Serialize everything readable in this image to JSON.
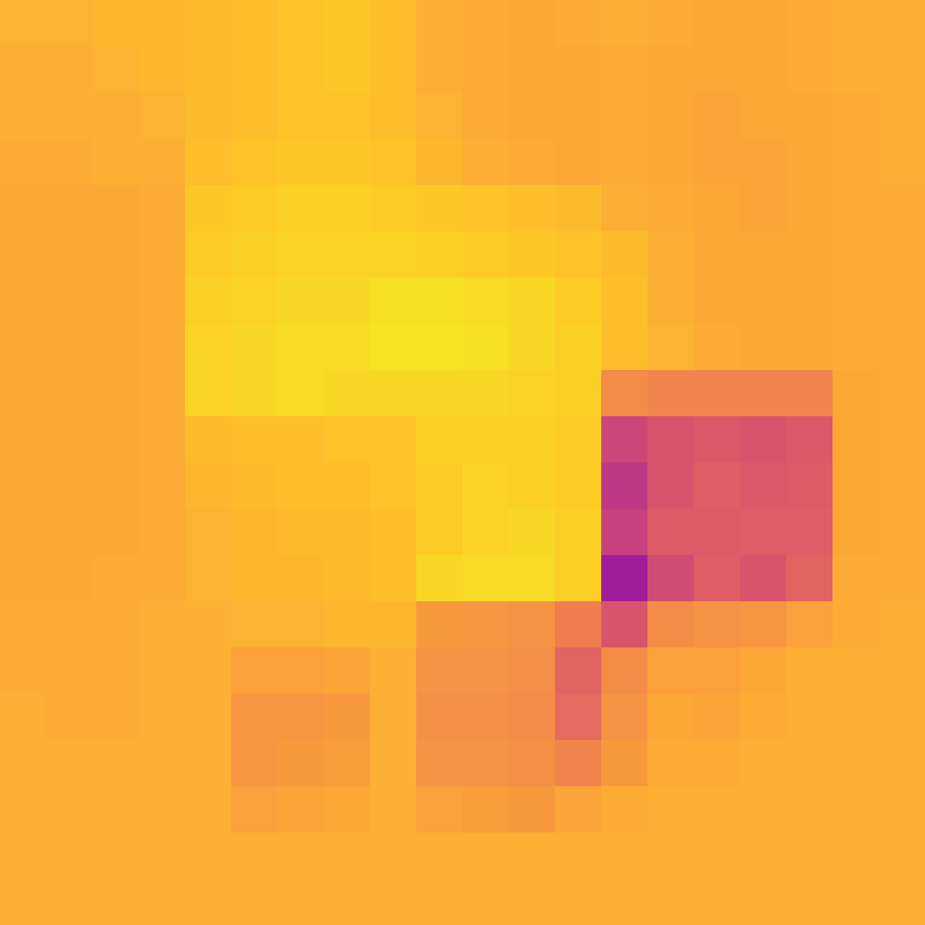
{
  "chart_data": {
    "type": "heatmap",
    "color": "plasma",
    "tick_labels": false,
    "grid": false,
    "zlim": [
      0,
      1
    ],
    "cells": [
      [
        0.83,
        0.83,
        0.84,
        0.84,
        0.85,
        0.86,
        0.87,
        0.88,
        0.86,
        0.82,
        0.81,
        0.8,
        0.81,
        0.82,
        0.81,
        0.8,
        0.8,
        0.81,
        0.82,
        0.82
      ],
      [
        0.82,
        0.82,
        0.83,
        0.84,
        0.85,
        0.86,
        0.87,
        0.88,
        0.86,
        0.82,
        0.81,
        0.8,
        0.8,
        0.81,
        0.8,
        0.8,
        0.8,
        0.81,
        0.82,
        0.82
      ],
      [
        0.82,
        0.82,
        0.82,
        0.83,
        0.85,
        0.86,
        0.87,
        0.87,
        0.86,
        0.83,
        0.81,
        0.8,
        0.8,
        0.81,
        0.8,
        0.79,
        0.8,
        0.8,
        0.81,
        0.82
      ],
      [
        0.81,
        0.81,
        0.82,
        0.82,
        0.86,
        0.87,
        0.88,
        0.88,
        0.87,
        0.84,
        0.82,
        0.81,
        0.8,
        0.81,
        0.8,
        0.79,
        0.79,
        0.8,
        0.81,
        0.82
      ],
      [
        0.8,
        0.8,
        0.8,
        0.81,
        0.88,
        0.89,
        0.9,
        0.9,
        0.89,
        0.88,
        0.87,
        0.86,
        0.85,
        0.82,
        0.81,
        0.8,
        0.79,
        0.8,
        0.81,
        0.81
      ],
      [
        0.8,
        0.8,
        0.8,
        0.81,
        0.89,
        0.9,
        0.91,
        0.91,
        0.91,
        0.9,
        0.89,
        0.88,
        0.87,
        0.85,
        0.82,
        0.8,
        0.8,
        0.8,
        0.81,
        0.81
      ],
      [
        0.8,
        0.8,
        0.8,
        0.81,
        0.9,
        0.91,
        0.92,
        0.92,
        0.94,
        0.94,
        0.93,
        0.92,
        0.89,
        0.86,
        0.82,
        0.8,
        0.8,
        0.8,
        0.81,
        0.81
      ],
      [
        0.8,
        0.8,
        0.8,
        0.81,
        0.91,
        0.92,
        0.93,
        0.93,
        0.95,
        0.95,
        0.94,
        0.92,
        0.9,
        0.86,
        0.83,
        0.81,
        0.8,
        0.8,
        0.81,
        0.81
      ],
      [
        0.8,
        0.8,
        0.8,
        0.81,
        0.91,
        0.92,
        0.93,
        0.92,
        0.92,
        0.92,
        0.92,
        0.91,
        0.9,
        0.72,
        0.7,
        0.7,
        0.7,
        0.7,
        0.8,
        0.81
      ],
      [
        0.8,
        0.8,
        0.8,
        0.81,
        0.85,
        0.86,
        0.86,
        0.87,
        0.87,
        0.9,
        0.9,
        0.9,
        0.89,
        0.5,
        0.55,
        0.56,
        0.55,
        0.56,
        0.8,
        0.81
      ],
      [
        0.8,
        0.8,
        0.8,
        0.81,
        0.84,
        0.85,
        0.86,
        0.86,
        0.87,
        0.89,
        0.91,
        0.9,
        0.89,
        0.45,
        0.55,
        0.58,
        0.56,
        0.57,
        0.8,
        0.81
      ],
      [
        0.8,
        0.8,
        0.8,
        0.81,
        0.83,
        0.84,
        0.85,
        0.85,
        0.86,
        0.89,
        0.91,
        0.92,
        0.9,
        0.48,
        0.57,
        0.57,
        0.58,
        0.58,
        0.8,
        0.81
      ],
      [
        0.8,
        0.8,
        0.81,
        0.81,
        0.83,
        0.84,
        0.84,
        0.85,
        0.86,
        0.92,
        0.93,
        0.93,
        0.9,
        0.35,
        0.52,
        0.58,
        0.55,
        0.6,
        0.81,
        0.81
      ],
      [
        0.81,
        0.81,
        0.81,
        0.82,
        0.82,
        0.83,
        0.83,
        0.84,
        0.84,
        0.76,
        0.75,
        0.74,
        0.68,
        0.55,
        0.72,
        0.74,
        0.75,
        0.78,
        0.81,
        0.82
      ],
      [
        0.81,
        0.81,
        0.81,
        0.82,
        0.82,
        0.78,
        0.78,
        0.79,
        0.82,
        0.74,
        0.74,
        0.73,
        0.6,
        0.72,
        0.78,
        0.78,
        0.8,
        0.82,
        0.82,
        0.82
      ],
      [
        0.82,
        0.81,
        0.81,
        0.82,
        0.82,
        0.75,
        0.75,
        0.76,
        0.82,
        0.73,
        0.73,
        0.72,
        0.62,
        0.74,
        0.8,
        0.79,
        0.81,
        0.82,
        0.82,
        0.82
      ],
      [
        0.82,
        0.82,
        0.82,
        0.82,
        0.82,
        0.75,
        0.76,
        0.77,
        0.82,
        0.74,
        0.74,
        0.73,
        0.7,
        0.76,
        0.81,
        0.81,
        0.82,
        0.82,
        0.82,
        0.82
      ],
      [
        0.82,
        0.82,
        0.82,
        0.82,
        0.82,
        0.78,
        0.79,
        0.8,
        0.82,
        0.78,
        0.77,
        0.76,
        0.79,
        0.81,
        0.82,
        0.82,
        0.82,
        0.82,
        0.82,
        0.82
      ],
      [
        0.82,
        0.82,
        0.82,
        0.82,
        0.82,
        0.82,
        0.82,
        0.82,
        0.82,
        0.82,
        0.82,
        0.82,
        0.82,
        0.82,
        0.82,
        0.82,
        0.82,
        0.82,
        0.82,
        0.82
      ],
      [
        0.82,
        0.82,
        0.82,
        0.82,
        0.82,
        0.82,
        0.82,
        0.82,
        0.82,
        0.82,
        0.82,
        0.82,
        0.82,
        0.82,
        0.82,
        0.82,
        0.82,
        0.82,
        0.82,
        0.82
      ]
    ]
  }
}
